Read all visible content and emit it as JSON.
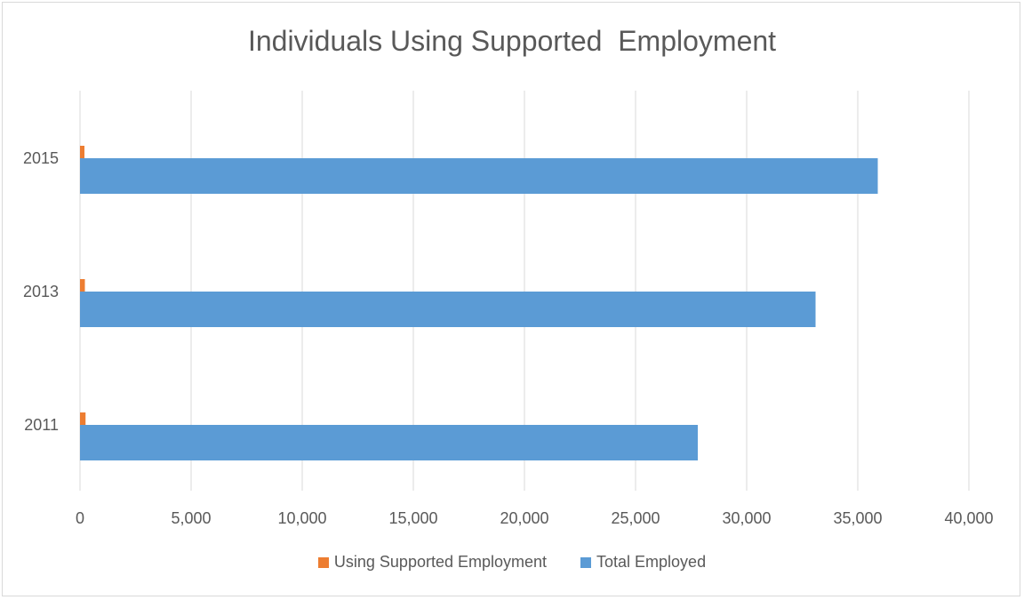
{
  "chart_data": {
    "type": "bar",
    "orientation": "horizontal",
    "title": "Individuals Using Supported  Employment",
    "xlabel": "",
    "ylabel": "",
    "categories": [
      "2011",
      "2013",
      "2015"
    ],
    "series": [
      {
        "name": "Using Supported Employment",
        "color": "#ed7d31",
        "values": [
          250,
          220,
          200
        ]
      },
      {
        "name": "Total Employed",
        "color": "#5b9bd5",
        "values": [
          27800,
          33100,
          35900
        ]
      }
    ],
    "xlim": [
      0,
      40000
    ],
    "xticks": [
      0,
      5000,
      10000,
      15000,
      20000,
      25000,
      30000,
      35000,
      40000
    ],
    "xtick_labels": [
      "0",
      "5,000",
      "10,000",
      "15,000",
      "20,000",
      "25,000",
      "30,000",
      "35,000",
      "40,000"
    ],
    "grid": "vertical",
    "legend_position": "bottom"
  }
}
